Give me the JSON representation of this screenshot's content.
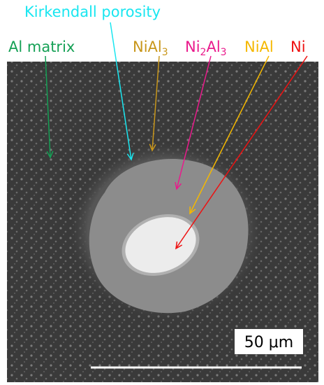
{
  "labels": [
    {
      "parts": [
        {
          "t": "Kirkendall porosity"
        }
      ],
      "color": "#19e6f0"
    },
    {
      "parts": [
        {
          "t": "Al matrix"
        }
      ],
      "color": "#15a055"
    },
    {
      "parts": [
        {
          "t": "NiAl"
        },
        {
          "t": "3",
          "sub": true
        }
      ],
      "color": "#c8961a"
    },
    {
      "parts": [
        {
          "t": "Ni"
        },
        {
          "t": "2",
          "sub": true
        },
        {
          "t": "Al"
        },
        {
          "t": "3",
          "sub": true
        }
      ],
      "color": "#ea1a8c"
    },
    {
      "parts": [
        {
          "t": "NiAl"
        }
      ],
      "color": "#f5b800"
    },
    {
      "parts": [
        {
          "t": "Ni"
        }
      ],
      "color": "#ee1111"
    }
  ],
  "scale_bar": {
    "label": "50 μm"
  }
}
